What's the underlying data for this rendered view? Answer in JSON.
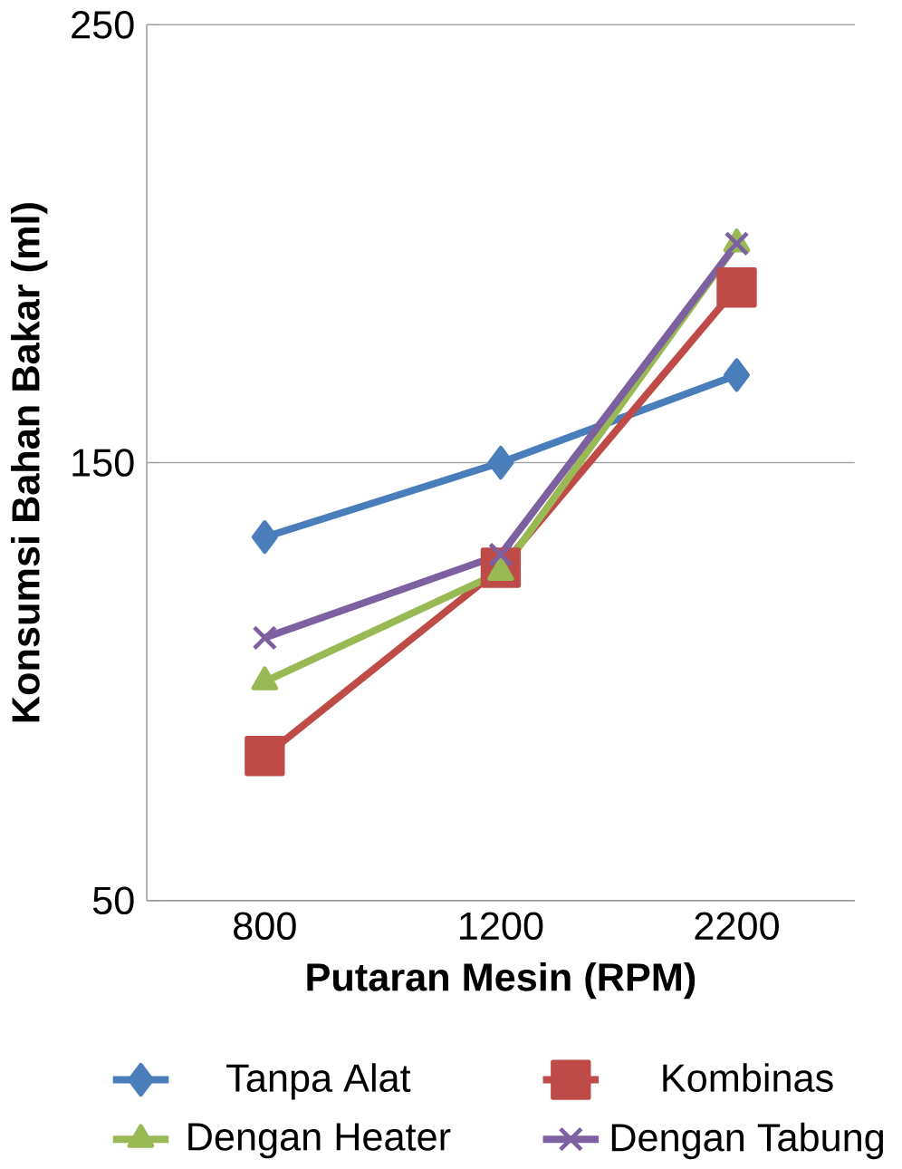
{
  "chart_data": {
    "type": "line",
    "xlabel": "Putaran Mesin (RPM)",
    "ylabel": "Konsumsi Bahan Bakar (ml)",
    "categories": [
      "800",
      "1200",
      "2200"
    ],
    "ylim": [
      50,
      250
    ],
    "yticks": [
      50,
      150,
      250
    ],
    "grid": "y",
    "legend": "bottom",
    "series": [
      {
        "name": "Tanpa Alat",
        "color": "#4a7ebb",
        "marker": "diamond",
        "values": [
          133,
          150,
          170
        ]
      },
      {
        "name": "Kombinas",
        "color": "#be4b48",
        "marker": "square",
        "values": [
          83,
          126,
          190
        ]
      },
      {
        "name": "Dengan Heater",
        "color": "#98b954",
        "marker": "triangle",
        "values": [
          100,
          125,
          200
        ]
      },
      {
        "name": "Dengan Tabung",
        "color": "#7d60a0",
        "marker": "cross",
        "values": [
          110,
          129,
          200
        ]
      }
    ]
  }
}
